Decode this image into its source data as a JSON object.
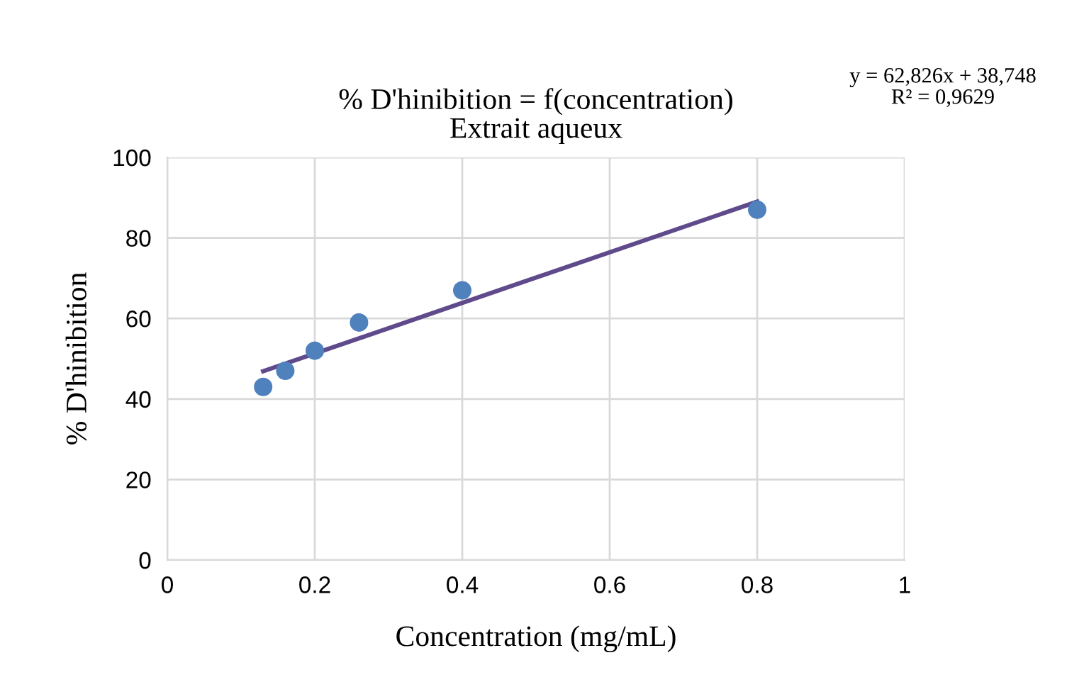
{
  "chart_data": {
    "type": "scatter",
    "title": "% D'hinibition = f(concentration)\nExtrait aqueux",
    "xlabel": "Concentration (mg/mL)",
    "ylabel": "% D'hinibition",
    "annotations": [
      "y = 62,826x + 38,748\nR² = 0,9629"
    ],
    "series": [
      {
        "color": "#4f81bd",
        "marker": "circle",
        "x": [
          0.13,
          0.16,
          0.2,
          0.26,
          0.4,
          0.8
        ],
        "values": [
          43,
          47,
          52,
          59,
          67,
          87
        ]
      },
      {
        "type": "line",
        "color": "#5f4a8b",
        "marker": "none",
        "x": [
          0.13,
          0.8
        ],
        "values": [
          46.9,
          89.0
        ]
      }
    ],
    "xlim": [
      0,
      1
    ],
    "xticks": [
      0,
      0.2,
      0.4,
      0.6,
      0.8,
      1
    ],
    "ylim": [
      0,
      100
    ],
    "yticks": [
      0,
      20,
      40,
      60,
      80,
      100
    ],
    "grid": true
  }
}
